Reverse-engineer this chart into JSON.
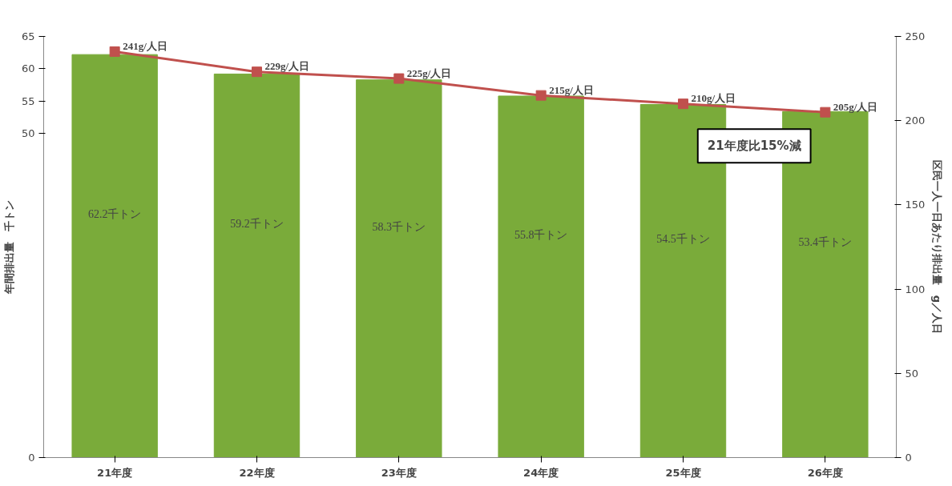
{
  "chart_data": {
    "type": "bar",
    "categories": [
      "21年度",
      "22年度",
      "23年度",
      "24年度",
      "25年度",
      "26年度"
    ],
    "ylabel": "年間排出量　千トン",
    "y2label": "区民一人一日あたり排出量　g／人日",
    "ylim": [
      0,
      65
    ],
    "yticks": [
      0,
      50,
      55,
      60,
      65
    ],
    "y2lim": [
      0,
      250
    ],
    "y2ticks": [
      0,
      50,
      100,
      150,
      200,
      250
    ],
    "grid": false,
    "series": [
      {
        "color": "#7aab3a",
        "values": [
          62.2,
          59.2,
          58.3,
          55.8,
          54.5,
          53.4
        ],
        "value_labels": [
          "62.2千トン",
          "59.2千トン",
          "58.3千トン",
          "55.8千トン",
          "54.5千トン",
          "53.4千トン"
        ]
      },
      {
        "type": "line",
        "axis": "y2",
        "color": "#c0504d",
        "marker": "square",
        "line_style": "solid",
        "values": [
          241,
          229,
          225,
          215,
          210,
          205
        ],
        "value_labels": [
          "241g/人日",
          "229g/人日",
          "225g/人日",
          "215g/人日",
          "210g/人日",
          "205g/人日"
        ]
      }
    ],
    "annotations": [
      "21年度比15%減"
    ]
  }
}
